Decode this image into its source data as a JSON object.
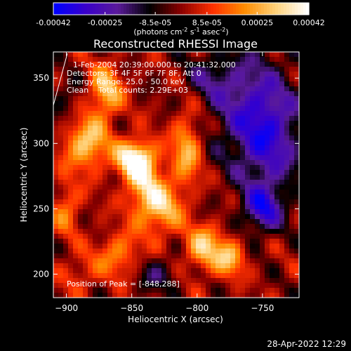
{
  "chart_data": {
    "type": "heatmap",
    "title": "Reconstructed RHESSI Image",
    "xlabel": "Heliocentric X (arcsec)",
    "ylabel": "Heliocentric Y (arcsec)",
    "xlim": [
      -910,
      -722
    ],
    "ylim": [
      182,
      370
    ],
    "x_ticks": [
      -900,
      -850,
      -800,
      -750
    ],
    "y_ticks": [
      200,
      250,
      300,
      350
    ],
    "colorbar": {
      "vmin": -0.00042,
      "vmax": 0.00042,
      "ticks": [
        {
          "value": -0.00042,
          "label": "-0.00042"
        },
        {
          "value": -0.00025,
          "label": "-0.00025"
        },
        {
          "value": -8.5e-05,
          "label": "-8.5e-05"
        },
        {
          "value": 8.5e-05,
          "label": "8.5e-05"
        },
        {
          "value": 0.00025,
          "label": "0.00025"
        },
        {
          "value": 0.00042,
          "label": "0.00042"
        }
      ],
      "unit_label": "(photons cm",
      "unit_exp1": "-2",
      "unit_mid": " s",
      "unit_exp2": "-1",
      "unit_mid2": " asec",
      "unit_exp3": "-2",
      "unit_end": ")",
      "colors": [
        "#0000ff",
        "#3a00c8",
        "#5a1a9a",
        "#000000",
        "#8b0000",
        "#ff3000",
        "#ff8c00",
        "#ffd27a",
        "#ffffff"
      ]
    },
    "grid": false,
    "info_lines": [
      "1-Feb-2004 20:39:00.000 to 20:41:32.000",
      "Detectors: 3F 4F 5F 6F 7F 8F, Att 0",
      "Energy Range: 25.0 - 50.0 keV",
      "Clean    Total counts: 2.29E+03"
    ],
    "peak_label": "Position of Peak = [-848,288]",
    "peak": [
      -848,
      288
    ],
    "sources": [
      {
        "x": -848,
        "y": 288,
        "amp": 0.00042,
        "sx": 10,
        "sy": 10
      },
      {
        "x": -885,
        "y": 300,
        "amp": 0.00032,
        "sx": 12,
        "sy": 14
      },
      {
        "x": -870,
        "y": 340,
        "amp": 0.0003,
        "sx": 9,
        "sy": 14
      },
      {
        "x": -840,
        "y": 265,
        "amp": 0.00028,
        "sx": 10,
        "sy": 18
      },
      {
        "x": -808,
        "y": 295,
        "amp": 0.00026,
        "sx": 8,
        "sy": 20
      },
      {
        "x": -825,
        "y": 250,
        "amp": 0.00024,
        "sx": 10,
        "sy": 14
      },
      {
        "x": -795,
        "y": 220,
        "amp": 0.0003,
        "sx": 10,
        "sy": 12
      },
      {
        "x": -775,
        "y": 212,
        "amp": 0.00026,
        "sx": 8,
        "sy": 10
      },
      {
        "x": -860,
        "y": 215,
        "amp": 0.0002,
        "sx": 12,
        "sy": 12
      },
      {
        "x": -890,
        "y": 200,
        "amp": 0.00012,
        "sx": 10,
        "sy": 10
      },
      {
        "x": -900,
        "y": 250,
        "amp": 0.00018,
        "sx": 8,
        "sy": 14
      },
      {
        "x": -760,
        "y": 330,
        "amp": -0.0002,
        "sx": 22,
        "sy": 30
      },
      {
        "x": -750,
        "y": 250,
        "amp": -0.0003,
        "sx": 10,
        "sy": 12
      },
      {
        "x": -745,
        "y": 300,
        "amp": -0.00024,
        "sx": 18,
        "sy": 30
      },
      {
        "x": -790,
        "y": 350,
        "amp": -0.00012,
        "sx": 14,
        "sy": 12
      },
      {
        "x": -830,
        "y": 200,
        "amp": -0.00014,
        "sx": 12,
        "sy": 10
      },
      {
        "x": -900,
        "y": 330,
        "amp": -0.0001,
        "sx": 10,
        "sy": 12
      }
    ]
  },
  "footer": {
    "timestamp": "28-Apr-2022 12:29"
  }
}
